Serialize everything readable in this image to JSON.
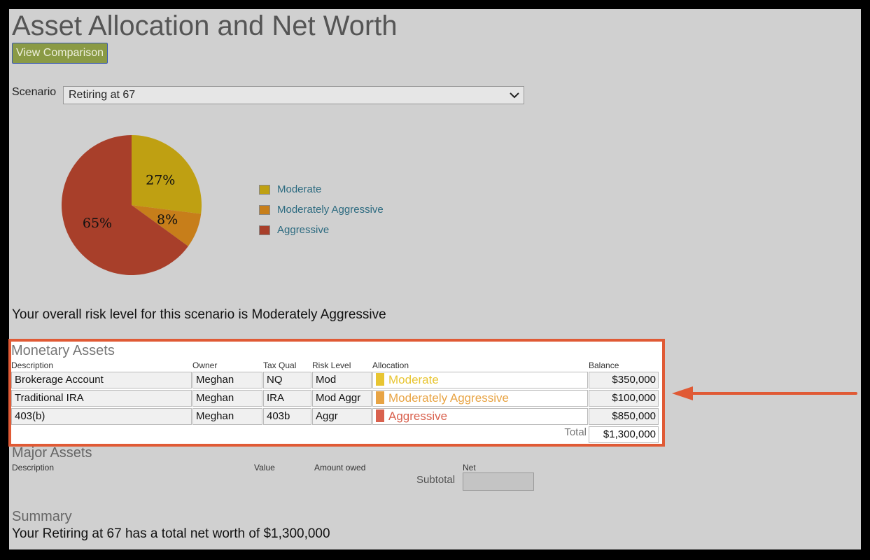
{
  "page": {
    "title": "Asset Allocation and Net Worth"
  },
  "actions": {
    "view_comparison": "View Comparison"
  },
  "scenario": {
    "label": "Scenario",
    "value": "Retiring at 67"
  },
  "chart_data": {
    "type": "pie",
    "slices": [
      {
        "name": "Moderate",
        "value": 27,
        "label": "27%",
        "color": "#bfa012"
      },
      {
        "name": "Moderately Aggressive",
        "value": 8,
        "label": "8%",
        "color": "#c77e1a"
      },
      {
        "name": "Aggressive",
        "value": 65,
        "label": "65%",
        "color": "#a83f2a"
      }
    ],
    "legend_position": "right"
  },
  "legend": {
    "items": [
      {
        "label": "Moderate",
        "color": "#bfa012"
      },
      {
        "label": "Moderately Aggressive",
        "color": "#c77e1a"
      },
      {
        "label": "Aggressive",
        "color": "#a83f2a"
      }
    ]
  },
  "risk_sentence": "Your overall risk level for this scenario is Moderately Aggressive",
  "monetary": {
    "title": "Monetary Assets",
    "columns": [
      "Description",
      "Owner",
      "Tax Qual",
      "Risk Level",
      "Allocation",
      "Balance"
    ],
    "rows": [
      {
        "description": "Brokerage Account",
        "owner": "Meghan",
        "tax_qual": "NQ",
        "risk": "Mod",
        "allocation": "Moderate",
        "alloc_color": "#e8c532",
        "balance": "$350,000"
      },
      {
        "description": "Traditional IRA",
        "owner": "Meghan",
        "tax_qual": "IRA",
        "risk": "Mod Aggr",
        "allocation": "Moderately Aggressive",
        "alloc_color": "#e8a445",
        "balance": "$100,000"
      },
      {
        "description": "403(b)",
        "owner": "Meghan",
        "tax_qual": "403b",
        "risk": "Aggr",
        "allocation": "Aggressive",
        "alloc_color": "#d9614e",
        "balance": "$850,000"
      }
    ],
    "total_label": "Total",
    "total_value": "$1,300,000"
  },
  "major": {
    "title": "Major Assets",
    "columns": [
      "Description",
      "Value",
      "Amount owed",
      "Net"
    ],
    "subtotal_label": "Subtotal"
  },
  "summary": {
    "title": "Summary",
    "text": "Your Retiring at 67 has a total net worth of $1,300,000"
  }
}
